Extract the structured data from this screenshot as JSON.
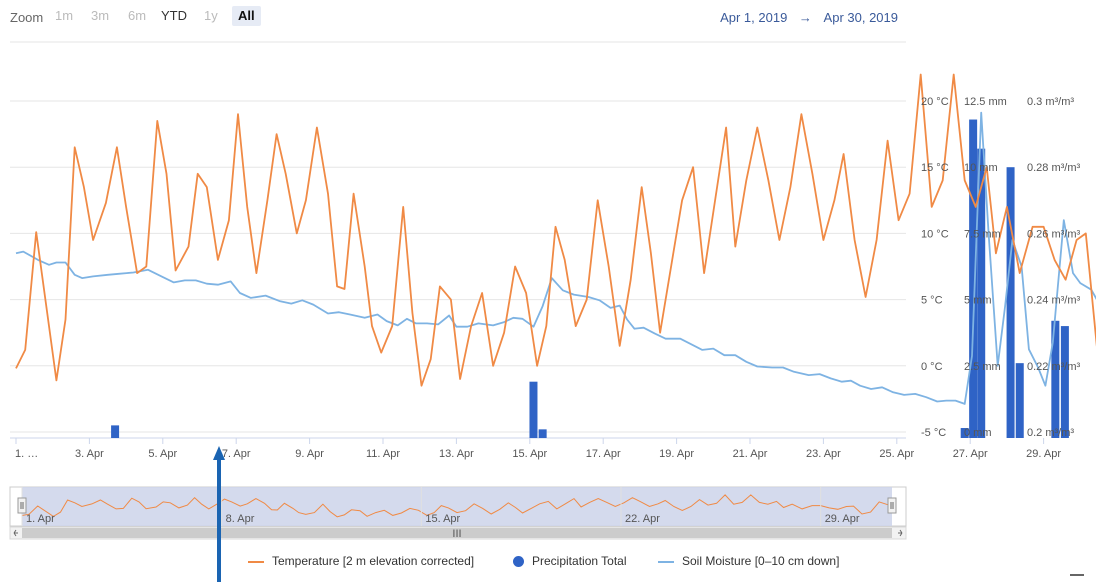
{
  "toolbar": {
    "zoom_label": "Zoom",
    "buttons": [
      "1m",
      "3m",
      "6m",
      "YTD",
      "1y",
      "All"
    ],
    "enabled": [
      false,
      false,
      false,
      true,
      false,
      true
    ],
    "active_index": 5,
    "range_from": "Apr 1, 2019",
    "range_arrow": "→",
    "range_to": "Apr 30, 2019"
  },
  "colors": {
    "temperature": "#f08a45",
    "precipitation": "#2f63c6",
    "soil_moisture": "#7eb3e3",
    "annotation_arrow": "#1a64b2"
  },
  "chart_data": {
    "type": "line",
    "x_tick_labels": [
      "1. …",
      "3. Apr",
      "5. Apr",
      "7. Apr",
      "9. Apr",
      "11. Apr",
      "13. Apr",
      "15. Apr",
      "17. Apr",
      "19. Apr",
      "21. Apr",
      "23. Apr",
      "25. Apr",
      "27. Apr",
      "29. Apr"
    ],
    "x_range_days": [
      1,
      30.5
    ],
    "y_axes": [
      {
        "unit": "°C",
        "ticks": [
          20,
          15,
          10,
          5,
          0,
          -5
        ],
        "tick_labels": [
          "20 °C",
          "15 °C",
          "10 °C",
          "5 °C",
          "0 °C",
          "-5 °C"
        ],
        "range": [
          -5,
          20
        ]
      },
      {
        "unit": "mm",
        "ticks": [
          12.5,
          10,
          7.5,
          5,
          2.5,
          0
        ],
        "tick_labels": [
          "12.5 mm",
          "10 mm",
          "7.5 mm",
          "5 mm",
          "2.5 mm",
          "0 mm"
        ],
        "range": [
          0,
          12.5
        ]
      },
      {
        "unit": "m³/m³",
        "ticks": [
          0.3,
          0.28,
          0.26,
          0.24,
          0.22,
          0.2
        ],
        "tick_labels": [
          "0.3 m³/m³",
          "0.28 m³/m³",
          "0.26 m³/m³",
          "0.24 m³/m³",
          "0.22 m³/m³",
          "0.2 m³/m³"
        ],
        "range": [
          0.2,
          0.3
        ]
      }
    ],
    "navigator_labels": [
      "1. Apr",
      "8. Apr",
      "15. Apr",
      "22. Apr",
      "29. Apr"
    ],
    "series": [
      {
        "name": "Temperature [2 m elevation corrected]",
        "type": "line",
        "axis": 0,
        "points": [
          [
            1.0,
            -0.2
          ],
          [
            1.25,
            1.2
          ],
          [
            1.55,
            10.1
          ],
          [
            2.1,
            -1.1
          ],
          [
            2.35,
            3.5
          ],
          [
            2.6,
            16.5
          ],
          [
            2.85,
            13.5
          ],
          [
            3.1,
            9.5
          ],
          [
            3.45,
            12.3
          ],
          [
            3.75,
            16.5
          ],
          [
            4.0,
            12.0
          ],
          [
            4.3,
            7.0
          ],
          [
            4.55,
            7.5
          ],
          [
            4.85,
            18.5
          ],
          [
            5.1,
            14.5
          ],
          [
            5.35,
            7.2
          ],
          [
            5.7,
            9.0
          ],
          [
            5.95,
            14.5
          ],
          [
            6.2,
            13.5
          ],
          [
            6.5,
            8.0
          ],
          [
            6.8,
            11.0
          ],
          [
            7.05,
            19.0
          ],
          [
            7.3,
            12.0
          ],
          [
            7.55,
            7.0
          ],
          [
            7.85,
            12.5
          ],
          [
            8.1,
            17.5
          ],
          [
            8.35,
            14.5
          ],
          [
            8.65,
            10.0
          ],
          [
            8.9,
            12.5
          ],
          [
            9.2,
            18.0
          ],
          [
            9.5,
            13.0
          ],
          [
            9.75,
            6.0
          ],
          [
            9.95,
            5.8
          ],
          [
            10.2,
            13.0
          ],
          [
            10.5,
            7.5
          ],
          [
            10.7,
            3.0
          ],
          [
            10.95,
            1.0
          ],
          [
            11.25,
            3.0
          ],
          [
            11.55,
            12.0
          ],
          [
            11.8,
            4.0
          ],
          [
            12.05,
            -1.5
          ],
          [
            12.3,
            0.5
          ],
          [
            12.55,
            6.0
          ],
          [
            12.85,
            5.0
          ],
          [
            13.1,
            -1.0
          ],
          [
            13.4,
            3.0
          ],
          [
            13.7,
            5.5
          ],
          [
            14.0,
            0.0
          ],
          [
            14.3,
            2.5
          ],
          [
            14.6,
            7.5
          ],
          [
            14.9,
            5.5
          ],
          [
            15.2,
            0.0
          ],
          [
            15.45,
            3.0
          ],
          [
            15.7,
            10.5
          ],
          [
            15.95,
            8.0
          ],
          [
            16.25,
            3.0
          ],
          [
            16.55,
            5.0
          ],
          [
            16.85,
            12.5
          ],
          [
            17.15,
            7.5
          ],
          [
            17.45,
            1.5
          ],
          [
            17.75,
            6.5
          ],
          [
            18.05,
            13.5
          ],
          [
            18.3,
            8.5
          ],
          [
            18.55,
            2.5
          ],
          [
            18.85,
            7.5
          ],
          [
            19.15,
            12.5
          ],
          [
            19.45,
            15.0
          ],
          [
            19.75,
            7.0
          ],
          [
            20.05,
            12.5
          ],
          [
            20.35,
            18.0
          ],
          [
            20.6,
            9.0
          ],
          [
            20.9,
            14.0
          ],
          [
            21.2,
            18.0
          ],
          [
            21.5,
            14.0
          ],
          [
            21.8,
            9.5
          ],
          [
            22.1,
            13.5
          ],
          [
            22.4,
            19.0
          ],
          [
            22.7,
            14.5
          ],
          [
            23.0,
            9.5
          ],
          [
            23.3,
            12.5
          ],
          [
            23.55,
            16.0
          ],
          [
            23.85,
            9.5
          ],
          [
            24.15,
            5.2
          ],
          [
            24.45,
            9.5
          ],
          [
            24.75,
            17.0
          ],
          [
            25.05,
            11.0
          ],
          [
            25.35,
            13.0
          ],
          [
            25.65,
            22.0
          ],
          [
            25.95,
            12.0
          ],
          [
            26.25,
            14.0
          ],
          [
            26.55,
            22.0
          ],
          [
            26.85,
            14.0
          ],
          [
            27.15,
            12.0
          ],
          [
            27.45,
            15.0
          ],
          [
            27.7,
            8.5
          ],
          [
            28.0,
            12.0
          ],
          [
            28.35,
            7.0
          ],
          [
            28.7,
            10.5
          ],
          [
            29.0,
            10.5
          ],
          [
            29.3,
            8.0
          ],
          [
            29.6,
            6.5
          ],
          [
            29.9,
            9.5
          ],
          [
            30.15,
            10.0
          ],
          [
            30.45,
            1.5
          ],
          [
            30.75,
            3.5
          ],
          [
            31.05,
            14.5
          ],
          [
            31.35,
            11.5
          ]
        ]
      },
      {
        "name": "Precipitation Total",
        "type": "column",
        "axis": 1,
        "points": [
          [
            3.7,
            0.25
          ],
          [
            15.1,
            1.9
          ],
          [
            15.35,
            0.1
          ],
          [
            26.85,
            0.15
          ],
          [
            27.08,
            11.8
          ],
          [
            27.3,
            10.7
          ],
          [
            28.1,
            10.0
          ],
          [
            28.35,
            2.6
          ],
          [
            29.32,
            4.2
          ],
          [
            29.58,
            4.0
          ]
        ]
      },
      {
        "name": "Soil Moisture [0–10 cm down]",
        "type": "line",
        "axis": 2,
        "points": [
          [
            1.0,
            0.254
          ],
          [
            1.2,
            0.2545
          ],
          [
            1.6,
            0.252
          ],
          [
            1.9,
            0.2505
          ],
          [
            2.1,
            0.2512
          ],
          [
            2.35,
            0.2512
          ],
          [
            2.6,
            0.2475
          ],
          [
            2.8,
            0.2465
          ],
          [
            3.1,
            0.247
          ],
          [
            3.5,
            0.2475
          ],
          [
            3.8,
            0.2478
          ],
          [
            4.2,
            0.2482
          ],
          [
            4.6,
            0.249
          ],
          [
            5.0,
            0.2468
          ],
          [
            5.3,
            0.2452
          ],
          [
            5.6,
            0.2458
          ],
          [
            5.9,
            0.2458
          ],
          [
            6.2,
            0.2448
          ],
          [
            6.5,
            0.2445
          ],
          [
            6.85,
            0.2455
          ],
          [
            7.1,
            0.242
          ],
          [
            7.4,
            0.2405
          ],
          [
            7.8,
            0.2412
          ],
          [
            8.2,
            0.2395
          ],
          [
            8.5,
            0.2388
          ],
          [
            8.8,
            0.2398
          ],
          [
            9.1,
            0.2385
          ],
          [
            9.5,
            0.2358
          ],
          [
            9.8,
            0.2362
          ],
          [
            10.1,
            0.2355
          ],
          [
            10.5,
            0.2345
          ],
          [
            10.85,
            0.2355
          ],
          [
            11.1,
            0.2335
          ],
          [
            11.4,
            0.2322
          ],
          [
            11.65,
            0.2342
          ],
          [
            11.9,
            0.2328
          ],
          [
            12.2,
            0.2328
          ],
          [
            12.5,
            0.2325
          ],
          [
            12.8,
            0.2352
          ],
          [
            13.0,
            0.2318
          ],
          [
            13.3,
            0.2318
          ],
          [
            13.6,
            0.2328
          ],
          [
            14.0,
            0.2322
          ],
          [
            14.3,
            0.2332
          ],
          [
            14.55,
            0.2345
          ],
          [
            14.8,
            0.2342
          ],
          [
            15.1,
            0.2318
          ],
          [
            15.35,
            0.238
          ],
          [
            15.6,
            0.2465
          ],
          [
            15.9,
            0.2428
          ],
          [
            16.2,
            0.2415
          ],
          [
            16.6,
            0.2408
          ],
          [
            16.9,
            0.2398
          ],
          [
            17.2,
            0.2375
          ],
          [
            17.45,
            0.2382
          ],
          [
            17.65,
            0.234
          ],
          [
            17.85,
            0.2312
          ],
          [
            18.1,
            0.2315
          ],
          [
            18.4,
            0.2298
          ],
          [
            18.7,
            0.2282
          ],
          [
            19.1,
            0.2282
          ],
          [
            19.4,
            0.2265
          ],
          [
            19.7,
            0.2248
          ],
          [
            20.0,
            0.2252
          ],
          [
            20.3,
            0.2232
          ],
          [
            20.6,
            0.2232
          ],
          [
            20.9,
            0.2212
          ],
          [
            21.2,
            0.2198
          ],
          [
            21.6,
            0.2195
          ],
          [
            21.9,
            0.2195
          ],
          [
            22.2,
            0.2182
          ],
          [
            22.6,
            0.2172
          ],
          [
            22.9,
            0.2175
          ],
          [
            23.2,
            0.2162
          ],
          [
            23.5,
            0.2152
          ],
          [
            23.75,
            0.2155
          ],
          [
            24.0,
            0.214
          ],
          [
            24.3,
            0.213
          ],
          [
            24.6,
            0.2135
          ],
          [
            24.9,
            0.212
          ],
          [
            25.2,
            0.2112
          ],
          [
            25.5,
            0.2115
          ],
          [
            25.8,
            0.2105
          ],
          [
            26.1,
            0.2092
          ],
          [
            26.35,
            0.2095
          ],
          [
            26.6,
            0.2095
          ],
          [
            26.85,
            0.2085
          ],
          [
            27.05,
            0.223
          ],
          [
            27.3,
            0.2965
          ],
          [
            27.5,
            0.26
          ],
          [
            27.75,
            0.22
          ],
          [
            27.95,
            0.238
          ],
          [
            28.15,
            0.258
          ],
          [
            28.4,
            0.25
          ],
          [
            28.6,
            0.225
          ],
          [
            28.85,
            0.2195
          ],
          [
            29.05,
            0.214
          ],
          [
            29.25,
            0.227
          ],
          [
            29.55,
            0.264
          ],
          [
            29.8,
            0.248
          ],
          [
            30.0,
            0.245
          ],
          [
            30.3,
            0.243
          ],
          [
            30.55,
            0.238
          ],
          [
            30.8,
            0.236
          ],
          [
            31.35,
            0.233
          ]
        ]
      }
    ]
  },
  "legend": [
    {
      "label": "Temperature [2 m elevation corrected]",
      "symbol": "line"
    },
    {
      "label": "Precipitation Total",
      "symbol": "dot"
    },
    {
      "label": "Soil Moisture [0–10 cm down]",
      "symbol": "line"
    }
  ],
  "navigator": {
    "scroll_grip": "III"
  }
}
